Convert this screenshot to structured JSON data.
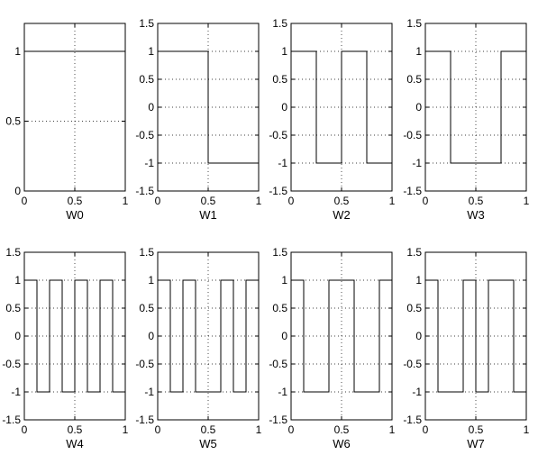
{
  "chart_data": [
    {
      "type": "line",
      "xlabel": "W0",
      "xlim": [
        0,
        1
      ],
      "ylim": [
        0,
        1.2
      ],
      "xticks": [
        0,
        0.5,
        1
      ],
      "xtick_labels": [
        "0",
        "0.5",
        "1"
      ],
      "yticks": [
        0,
        0.5,
        1
      ],
      "ytick_labels": [
        "0",
        "0.5",
        "1"
      ],
      "grid": true,
      "series": [
        {
          "x": [
            0,
            1
          ],
          "y": [
            1,
            1
          ]
        }
      ]
    },
    {
      "type": "line",
      "xlabel": "W1",
      "xlim": [
        0,
        1
      ],
      "ylim": [
        -1.5,
        1.5
      ],
      "xticks": [
        0,
        0.5,
        1
      ],
      "xtick_labels": [
        "0",
        "0.5",
        "1"
      ],
      "yticks": [
        -1.5,
        -1,
        -0.5,
        0,
        0.5,
        1,
        1.5
      ],
      "ytick_labels": [
        "-1.5",
        "-1",
        "-0.5",
        "0",
        "0.5",
        "1",
        "1.5"
      ],
      "grid": true,
      "series": [
        {
          "x": [
            0,
            0.5,
            0.5,
            1
          ],
          "y": [
            1,
            1,
            -1,
            -1
          ]
        }
      ]
    },
    {
      "type": "line",
      "xlabel": "W2",
      "xlim": [
        0,
        1
      ],
      "ylim": [
        -1.5,
        1.5
      ],
      "xticks": [
        0,
        0.5,
        1
      ],
      "xtick_labels": [
        "0",
        "0.5",
        "1"
      ],
      "yticks": [
        -1.5,
        -1,
        -0.5,
        0,
        0.5,
        1,
        1.5
      ],
      "ytick_labels": [
        "-1.5",
        "-1",
        "-0.5",
        "0",
        "0.5",
        "1",
        "1.5"
      ],
      "grid": true,
      "series": [
        {
          "x": [
            0,
            0.25,
            0.25,
            0.5,
            0.5,
            0.75,
            0.75,
            1
          ],
          "y": [
            1,
            1,
            -1,
            -1,
            1,
            1,
            -1,
            -1
          ]
        }
      ]
    },
    {
      "type": "line",
      "xlabel": "W3",
      "xlim": [
        0,
        1
      ],
      "ylim": [
        -1.5,
        1.5
      ],
      "xticks": [
        0,
        0.5,
        1
      ],
      "xtick_labels": [
        "0",
        "0.5",
        "1"
      ],
      "yticks": [
        -1.5,
        -1,
        -0.5,
        0,
        0.5,
        1,
        1.5
      ],
      "ytick_labels": [
        "-1.5",
        "-1",
        "-0.5",
        "0",
        "0.5",
        "1",
        "1.5"
      ],
      "grid": true,
      "series": [
        {
          "x": [
            0,
            0.25,
            0.25,
            0.75,
            0.75,
            1
          ],
          "y": [
            1,
            1,
            -1,
            -1,
            1,
            1
          ]
        }
      ]
    },
    {
      "type": "line",
      "xlabel": "W4",
      "xlim": [
        0,
        1
      ],
      "ylim": [
        -1.5,
        1.5
      ],
      "xticks": [
        0,
        0.5,
        1
      ],
      "xtick_labels": [
        "0",
        "0.5",
        "1"
      ],
      "yticks": [
        -1.5,
        -1,
        -0.5,
        0,
        0.5,
        1,
        1.5
      ],
      "ytick_labels": [
        "-1.5",
        "-1",
        "-0.5",
        "0",
        "0.5",
        "1",
        "1.5"
      ],
      "grid": true,
      "series": [
        {
          "x": [
            0,
            0.125,
            0.125,
            0.25,
            0.25,
            0.375,
            0.375,
            0.5,
            0.5,
            0.625,
            0.625,
            0.75,
            0.75,
            0.875,
            0.875,
            1
          ],
          "y": [
            1,
            1,
            -1,
            -1,
            1,
            1,
            -1,
            -1,
            1,
            1,
            -1,
            -1,
            1,
            1,
            -1,
            -1
          ]
        }
      ]
    },
    {
      "type": "line",
      "xlabel": "W5",
      "xlim": [
        0,
        1
      ],
      "ylim": [
        -1.5,
        1.5
      ],
      "xticks": [
        0,
        0.5,
        1
      ],
      "xtick_labels": [
        "0",
        "0.5",
        "1"
      ],
      "yticks": [
        -1.5,
        -1,
        -0.5,
        0,
        0.5,
        1,
        1.5
      ],
      "ytick_labels": [
        "-1.5",
        "-1",
        "-0.5",
        "0",
        "0.5",
        "1",
        "1.5"
      ],
      "grid": true,
      "series": [
        {
          "x": [
            0,
            0.125,
            0.125,
            0.25,
            0.25,
            0.375,
            0.375,
            0.625,
            0.625,
            0.75,
            0.75,
            0.875,
            0.875,
            1
          ],
          "y": [
            1,
            1,
            -1,
            -1,
            1,
            1,
            -1,
            -1,
            1,
            1,
            -1,
            -1,
            1,
            1
          ]
        }
      ]
    },
    {
      "type": "line",
      "xlabel": "W6",
      "xlim": [
        0,
        1
      ],
      "ylim": [
        -1.5,
        1.5
      ],
      "xticks": [
        0,
        0.5,
        1
      ],
      "xtick_labels": [
        "0",
        "0.5",
        "1"
      ],
      "yticks": [
        -1.5,
        -1,
        -0.5,
        0,
        0.5,
        1,
        1.5
      ],
      "ytick_labels": [
        "-1.5",
        "-1",
        "-0.5",
        "0",
        "0.5",
        "1",
        "1.5"
      ],
      "grid": true,
      "series": [
        {
          "x": [
            0,
            0.125,
            0.125,
            0.375,
            0.375,
            0.625,
            0.625,
            0.875,
            0.875,
            1
          ],
          "y": [
            1,
            1,
            -1,
            -1,
            1,
            1,
            -1,
            -1,
            1,
            1
          ]
        }
      ]
    },
    {
      "type": "line",
      "xlabel": "W7",
      "xlim": [
        0,
        1
      ],
      "ylim": [
        -1.5,
        1.5
      ],
      "xticks": [
        0,
        0.5,
        1
      ],
      "xtick_labels": [
        "0",
        "0.5",
        "1"
      ],
      "yticks": [
        -1.5,
        -1,
        -0.5,
        0,
        0.5,
        1,
        1.5
      ],
      "ytick_labels": [
        "-1.5",
        "-1",
        "-0.5",
        "0",
        "0.5",
        "1",
        "1.5"
      ],
      "grid": true,
      "series": [
        {
          "x": [
            0,
            0.125,
            0.125,
            0.375,
            0.375,
            0.5,
            0.5,
            0.625,
            0.625,
            0.875,
            0.875,
            1
          ],
          "y": [
            1,
            1,
            -1,
            -1,
            1,
            1,
            -1,
            -1,
            1,
            1,
            -1,
            -1
          ]
        }
      ]
    }
  ]
}
